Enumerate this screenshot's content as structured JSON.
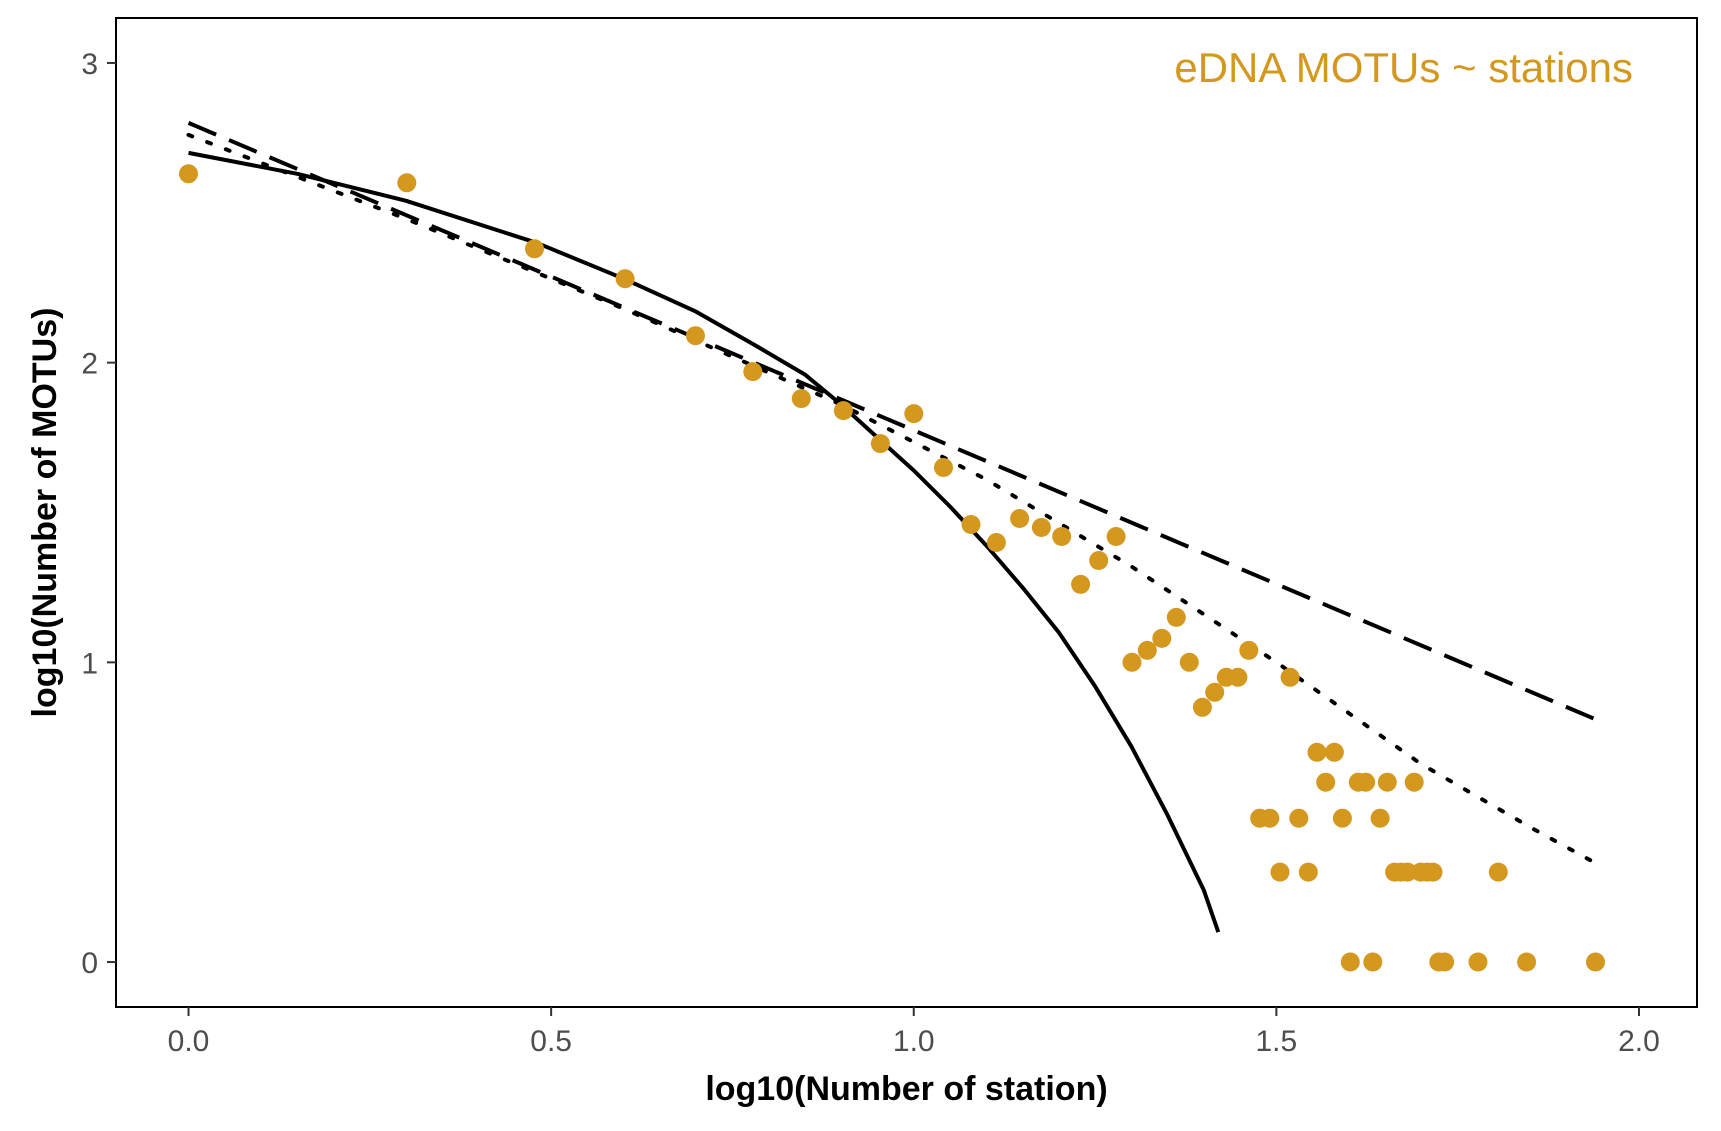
{
  "chart_data": {
    "type": "scatter",
    "title": "",
    "annotation": "eDNA MOTUs ~ stations",
    "xlabel": "log10(Number of station)",
    "ylabel": "log10(Number of MOTUs)",
    "xlim": [
      -0.1,
      2.08
    ],
    "ylim": [
      -0.15,
      3.15
    ],
    "x_ticks": [
      0.0,
      0.5,
      1.0,
      1.5,
      2.0
    ],
    "x_tick_labels": [
      "0.0",
      "0.5",
      "1.0",
      "1.5",
      "2.0"
    ],
    "y_ticks": [
      0,
      1,
      2,
      3
    ],
    "y_tick_labels": [
      "0",
      "1",
      "2",
      "3"
    ],
    "grid": false,
    "point_color": "#D4981E",
    "line_color": "#000000",
    "series": [
      {
        "kind": "points",
        "x": [
          0.0,
          0.301,
          0.477,
          0.602,
          0.699,
          0.778,
          0.845,
          0.903,
          0.954,
          1.0,
          1.041,
          1.079,
          1.114,
          1.146,
          1.176,
          1.204,
          1.23,
          1.255,
          1.279,
          1.301,
          1.322,
          1.342,
          1.362,
          1.38,
          1.398,
          1.415,
          1.431,
          1.447,
          1.462,
          1.477,
          1.491,
          1.505,
          1.519,
          1.531,
          1.544,
          1.556,
          1.568,
          1.58,
          1.591,
          1.602,
          1.613,
          1.623,
          1.633,
          1.643,
          1.653,
          1.663,
          1.672,
          1.681,
          1.69,
          1.699,
          1.708,
          1.716,
          1.724,
          1.732,
          1.778,
          1.806,
          1.845,
          1.94
        ],
        "y": [
          2.63,
          2.6,
          2.38,
          2.28,
          2.09,
          1.97,
          1.88,
          1.84,
          1.73,
          1.83,
          1.65,
          1.46,
          1.4,
          1.48,
          1.45,
          1.42,
          1.26,
          1.34,
          1.42,
          1.0,
          1.04,
          1.08,
          1.15,
          1.0,
          0.85,
          0.9,
          0.95,
          0.95,
          1.04,
          0.48,
          0.48,
          0.3,
          0.95,
          0.48,
          0.3,
          0.7,
          0.6,
          0.7,
          0.48,
          0.0,
          0.6,
          0.6,
          0.0,
          0.48,
          0.6,
          0.3,
          0.3,
          0.3,
          0.6,
          0.3,
          0.3,
          0.3,
          0.0,
          0.0,
          0.0,
          0.3,
          0.0,
          0.0
        ]
      },
      {
        "kind": "solid",
        "x": [
          0.0,
          0.15,
          0.3,
          0.48,
          0.6,
          0.7,
          0.78,
          0.85,
          0.9,
          0.95,
          1.0,
          1.05,
          1.1,
          1.15,
          1.2,
          1.25,
          1.3,
          1.35,
          1.4,
          1.42
        ],
        "y": [
          2.7,
          2.63,
          2.54,
          2.4,
          2.28,
          2.17,
          2.06,
          1.96,
          1.86,
          1.75,
          1.64,
          1.52,
          1.39,
          1.25,
          1.1,
          0.92,
          0.72,
          0.49,
          0.24,
          0.1
        ]
      },
      {
        "kind": "dashed",
        "x": [
          0.0,
          1.94
        ],
        "y": [
          2.8,
          0.81
        ]
      },
      {
        "kind": "dotted",
        "x": [
          0.0,
          0.3,
          0.6,
          0.9,
          1.1,
          1.3,
          1.5,
          1.7,
          1.85,
          1.94
        ],
        "y": [
          2.76,
          2.48,
          2.18,
          1.86,
          1.61,
          1.32,
          1.0,
          0.66,
          0.45,
          0.33
        ]
      }
    ]
  }
}
